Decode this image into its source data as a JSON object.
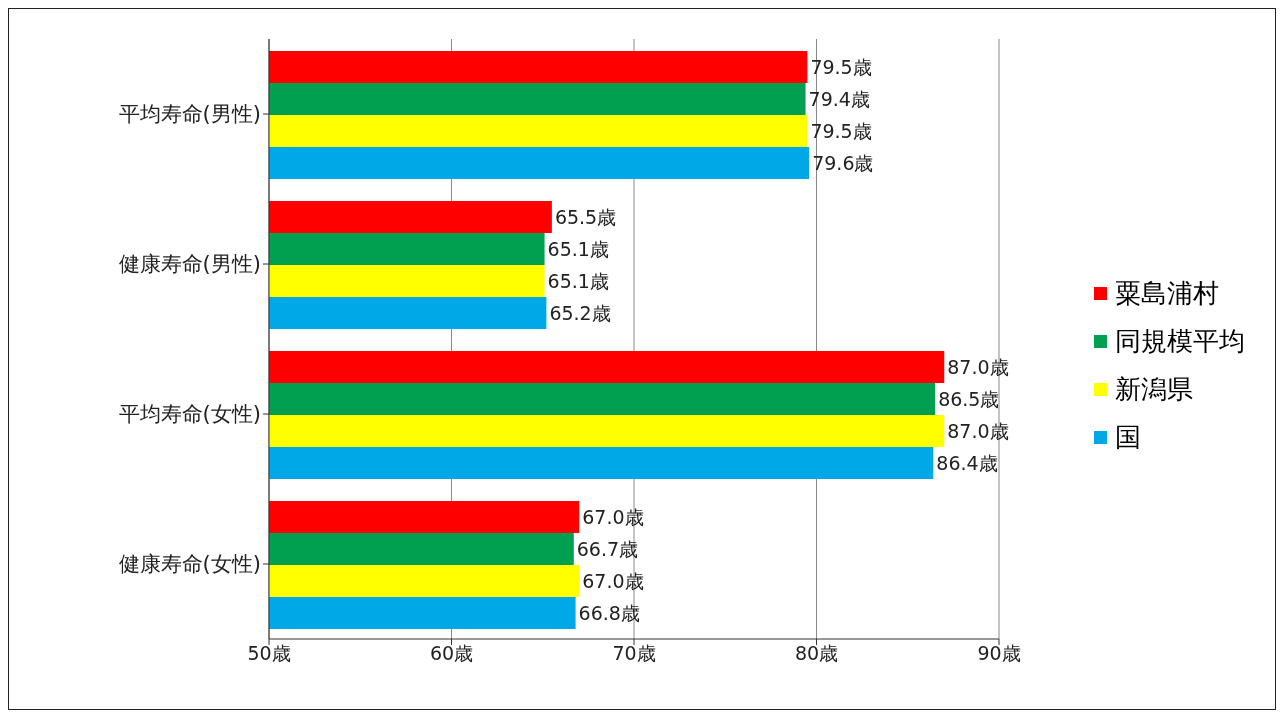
{
  "chart_data": {
    "type": "bar",
    "orientation": "horizontal",
    "categories": [
      "平均寿命(男性)",
      "健康寿命(男性)",
      "平均寿命(女性)",
      "健康寿命(女性)"
    ],
    "series": [
      {
        "name": "粟島浦村",
        "color": "#ff0000",
        "values": [
          79.5,
          65.5,
          87.0,
          67.0
        ],
        "value_labels": [
          "79.5歳",
          "65.5歳",
          "87.0歳",
          "67.0歳"
        ]
      },
      {
        "name": "同規模平均",
        "color": "#00a050",
        "values": [
          79.4,
          65.1,
          86.5,
          66.7
        ],
        "value_labels": [
          "79.4歳",
          "65.1歳",
          "86.5歳",
          "66.7歳"
        ]
      },
      {
        "name": "新潟県",
        "color": "#ffff00",
        "values": [
          79.5,
          65.1,
          87.0,
          67.0
        ],
        "value_labels": [
          "79.5歳",
          "65.1歳",
          "87.0歳",
          "67.0歳"
        ]
      },
      {
        "name": "国",
        "color": "#00a8e8",
        "values": [
          79.6,
          65.2,
          86.4,
          66.8
        ],
        "value_labels": [
          "79.6歳",
          "65.2歳",
          "86.4歳",
          "66.8歳"
        ]
      }
    ],
    "xlim": [
      50,
      90
    ],
    "xticks": [
      {
        "value": 50,
        "label": "50歳"
      },
      {
        "value": 60,
        "label": "60歳"
      },
      {
        "value": 70,
        "label": "70歳"
      },
      {
        "value": 80,
        "label": "80歳"
      },
      {
        "value": 90,
        "label": "90歳"
      }
    ],
    "grid": "x",
    "legend": "right"
  }
}
